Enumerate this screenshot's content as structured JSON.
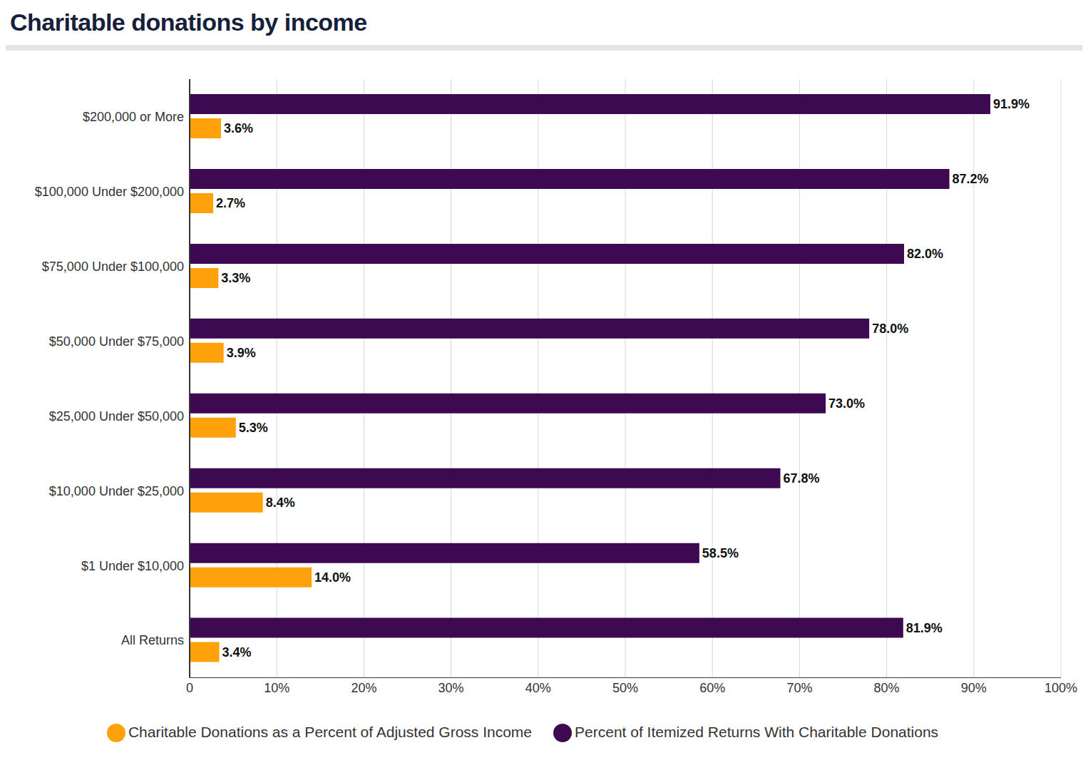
{
  "chart_data": {
    "type": "bar",
    "title": "Charitable donations by income",
    "orientation": "horizontal",
    "categories": [
      "$200,000 or More",
      "$100,000 Under $200,000",
      "$75,000 Under $100,000",
      "$50,000 Under $75,000",
      "$25,000 Under $50,000",
      "$10,000 Under $25,000",
      "$1 Under $10,000",
      "All Returns"
    ],
    "series": [
      {
        "name": "Percent of Itemized Returns With Charitable Donations",
        "color": "#3d0a52",
        "values": [
          91.9,
          87.2,
          82.0,
          78.0,
          73.0,
          67.8,
          58.5,
          81.9
        ],
        "value_labels": [
          "91.9%",
          "87.2%",
          "82.0%",
          "78.0%",
          "73.0%",
          "67.8%",
          "58.5%",
          "81.9%"
        ]
      },
      {
        "name": "Charitable Donations as a Percent of Adjusted Gross Income",
        "color": "#ffa10a",
        "values": [
          3.6,
          2.7,
          3.3,
          3.9,
          5.3,
          8.4,
          14.0,
          3.4
        ],
        "value_labels": [
          "3.6%",
          "2.7%",
          "3.3%",
          "3.9%",
          "5.3%",
          "8.4%",
          "14.0%",
          "3.4%"
        ]
      }
    ],
    "xlim": [
      0,
      100
    ],
    "xticks": [
      0,
      {
        "value": 10,
        "label": "10%"
      },
      {
        "value": 20,
        "label": "20%"
      },
      {
        "value": 30,
        "label": "30%"
      },
      {
        "value": 40,
        "label": "40%"
      },
      {
        "value": 50,
        "label": "50%"
      },
      {
        "value": 60,
        "label": "60%"
      },
      {
        "value": 70,
        "label": "70%"
      },
      {
        "value": 80,
        "label": "80%"
      },
      {
        "value": 90,
        "label": "90%"
      },
      {
        "value": 100,
        "label": "100%"
      }
    ],
    "grid": true,
    "legend": "bottom",
    "data_labels": true
  }
}
